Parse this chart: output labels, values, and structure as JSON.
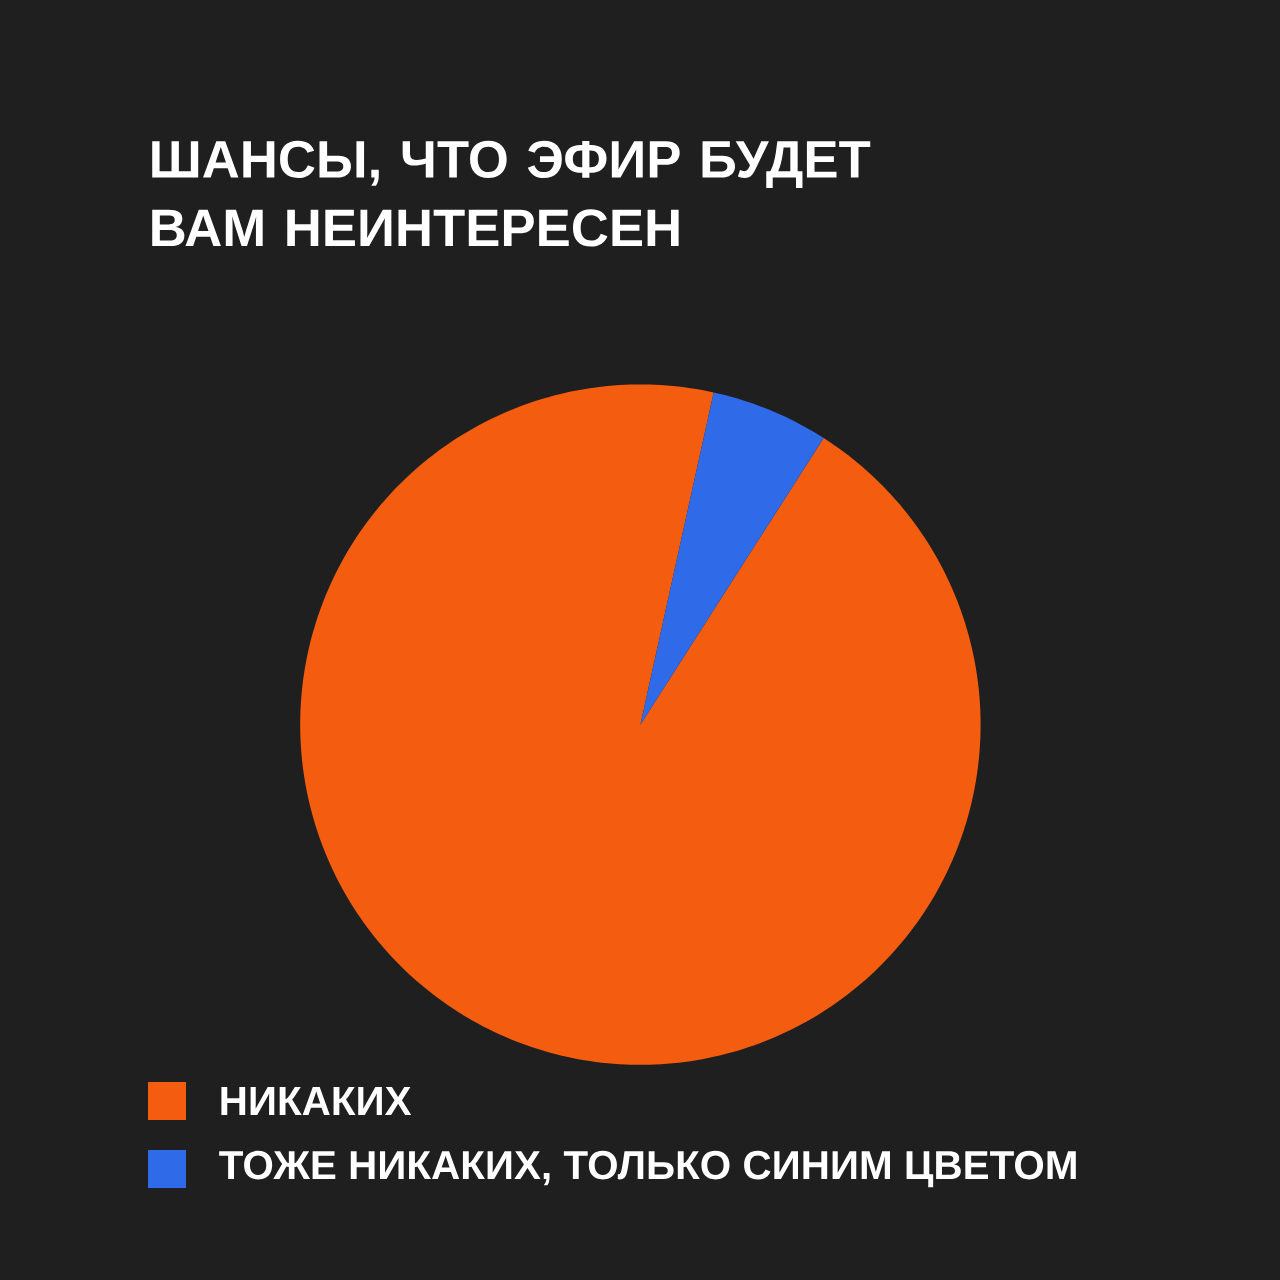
{
  "chart_data": {
    "type": "pie",
    "title": "ШАНСЫ, ЧТО ЭФИР БУДЕТ ВАМ НЕИНТЕРЕСЕН",
    "categories": [
      "НИКАКИХ",
      "ТОЖЕ НИКАКИХ, ТОЛЬКО СИНИМ ЦВЕТОМ"
    ],
    "values": [
      94.4,
      5.6
    ],
    "colors": [
      "#f45d10",
      "#2f6be8"
    ],
    "legend": "bottom"
  }
}
